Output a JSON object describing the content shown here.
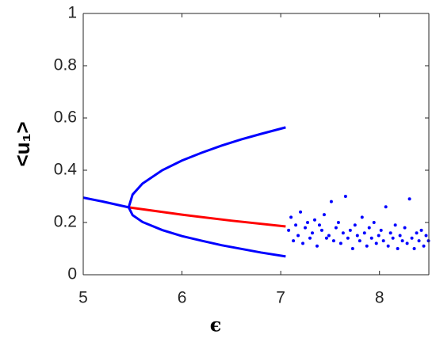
{
  "chart_data": {
    "type": "line",
    "x_label": "ϵ",
    "y_label": "<u₁>",
    "xlim": [
      5,
      8.5
    ],
    "ylim": [
      0,
      1
    ],
    "xticks": [
      5,
      6,
      7,
      8
    ],
    "yticks": [
      0,
      0.2,
      0.4,
      0.6,
      0.8,
      1
    ],
    "box": true,
    "series": [
      {
        "mode": "line",
        "color": "#0000ff",
        "x": [
          5,
          5.2,
          5.46
        ],
        "values": [
          0.295,
          0.28,
          0.258
        ]
      },
      {
        "mode": "line",
        "color": "#ff0000",
        "x": [
          5.46,
          6,
          6.5,
          7.05
        ],
        "values": [
          0.258,
          0.23,
          0.207,
          0.185
        ]
      },
      {
        "mode": "line",
        "color": "#0000ff",
        "x": [
          7.05,
          6.8,
          6.6,
          6.4,
          6.2,
          6.0,
          5.8,
          5.6,
          5.5,
          5.46,
          5.5,
          5.6,
          5.8,
          6.0,
          6.2,
          6.4,
          6.6,
          6.8,
          7.05
        ],
        "values": [
          0.564,
          0.539,
          0.518,
          0.494,
          0.467,
          0.437,
          0.4,
          0.349,
          0.307,
          0.258,
          0.228,
          0.202,
          0.171,
          0.148,
          0.13,
          0.113,
          0.099,
          0.085,
          0.07
        ]
      },
      {
        "mode": "markers",
        "color": "#0000ff",
        "x": [
          7.08,
          7.104,
          7.128,
          7.152,
          7.176,
          7.2,
          7.224,
          7.248,
          7.272,
          7.296,
          7.32,
          7.344,
          7.368,
          7.392,
          7.416,
          7.44,
          7.464,
          7.488,
          7.512,
          7.536,
          7.56,
          7.584,
          7.608,
          7.632,
          7.656,
          7.68,
          7.704,
          7.728,
          7.752,
          7.776,
          7.8,
          7.824,
          7.848,
          7.872,
          7.896,
          7.92,
          7.944,
          7.968,
          7.992,
          8.016,
          8.04,
          8.064,
          8.088,
          8.112,
          8.136,
          8.16,
          8.184,
          8.208,
          8.232,
          8.256,
          8.28,
          8.304,
          8.328,
          8.352,
          8.376,
          8.4,
          8.424,
          8.448,
          8.472,
          8.496
        ],
        "values": [
          0.17,
          0.22,
          0.13,
          0.19,
          0.15,
          0.24,
          0.12,
          0.18,
          0.2,
          0.14,
          0.16,
          0.21,
          0.11,
          0.19,
          0.17,
          0.23,
          0.14,
          0.15,
          0.28,
          0.13,
          0.18,
          0.2,
          0.12,
          0.16,
          0.3,
          0.14,
          0.17,
          0.1,
          0.19,
          0.15,
          0.13,
          0.22,
          0.16,
          0.11,
          0.18,
          0.14,
          0.2,
          0.12,
          0.15,
          0.17,
          0.13,
          0.26,
          0.11,
          0.16,
          0.14,
          0.19,
          0.1,
          0.15,
          0.13,
          0.18,
          0.12,
          0.29,
          0.14,
          0.1,
          0.16,
          0.13,
          0.17,
          0.11,
          0.15,
          0.13
        ]
      }
    ]
  }
}
